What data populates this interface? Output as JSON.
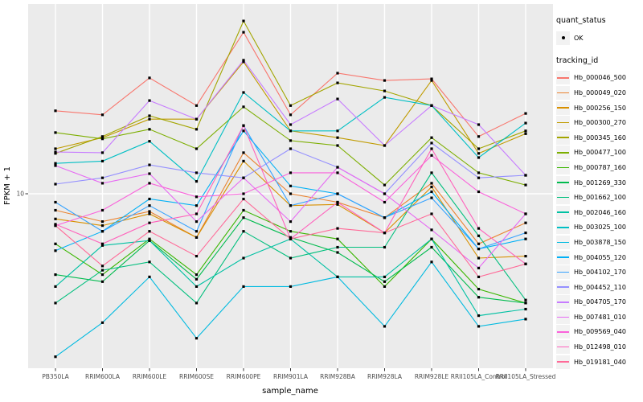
{
  "axes": {
    "x_title": "sample_name",
    "y_title": "FPKM + 1",
    "y_tick_label": "10"
  },
  "legend": {
    "quant_title": "quant_status",
    "quant_items": [
      {
        "label": "OK",
        "marker": "point"
      }
    ],
    "tracking_title": "tracking_id"
  },
  "chart_data": {
    "type": "line",
    "title": "",
    "xlabel": "sample_name",
    "ylabel": "FPKM + 1",
    "y_scale": "log10",
    "y_ticks": [
      10
    ],
    "ylim": [
      1.8,
      60
    ],
    "grid": "ggplot-gray-panel-white-gridlines",
    "legend_position": "right",
    "point_marker": {
      "shape": "square",
      "color": "#000000"
    },
    "x_categories": [
      "PB350LA",
      "RRIM600LA",
      "RRIM600LE",
      "RRIM600SE",
      "RRIM600PE",
      "RRIM901LA",
      "RRIM928BA",
      "RRIM928LA",
      "RRIM928LE",
      "RRII105LA_Control",
      "RRII105LA_Stressed"
    ],
    "series": [
      {
        "name": "Hb_000046_500",
        "color": "#F8766D",
        "values": [
          22.7,
          21.8,
          31.4,
          23.9,
          49.3,
          21.8,
          32.9,
          30.6,
          31.1,
          17.6,
          22.1
        ]
      },
      {
        "name": "Hb_000049_020",
        "color": "#EA8331",
        "values": [
          8.5,
          7.6,
          8.4,
          6.5,
          15.0,
          10.0,
          9.2,
          7.9,
          11.1,
          6.1,
          7.5
        ]
      },
      {
        "name": "Hb_000256_150",
        "color": "#D89000",
        "values": [
          7.8,
          7.3,
          8.2,
          6.5,
          13.8,
          8.9,
          9.0,
          6.8,
          10.7,
          5.3,
          5.4
        ]
      },
      {
        "name": "Hb_000300_270",
        "color": "#C09B00",
        "values": [
          15.6,
          17.4,
          20.9,
          20.9,
          36.8,
          18.6,
          17.4,
          16.1,
          30.6,
          14.9,
          18.1
        ]
      },
      {
        "name": "Hb_000345_160",
        "color": "#A3A500",
        "values": [
          14.9,
          17.6,
          21.6,
          18.9,
          55.1,
          23.9,
          29.9,
          27.6,
          23.9,
          15.6,
          18.6
        ]
      },
      {
        "name": "Hb_000477_100",
        "color": "#7CAE00",
        "values": [
          18.3,
          17.2,
          18.9,
          15.6,
          23.6,
          16.9,
          16.1,
          10.9,
          17.4,
          12.3,
          10.9
        ]
      },
      {
        "name": "Hb_000787_160",
        "color": "#39B600",
        "values": [
          6.1,
          4.5,
          6.4,
          4.5,
          8.5,
          6.9,
          6.4,
          4.0,
          6.4,
          3.9,
          3.4
        ]
      },
      {
        "name": "Hb_001269_330",
        "color": "#00BB4E",
        "values": [
          4.5,
          4.2,
          6.3,
          4.3,
          7.9,
          6.5,
          5.6,
          4.2,
          5.9,
          3.6,
          3.4
        ]
      },
      {
        "name": "Hb_001662_100",
        "color": "#00BF7D",
        "values": [
          3.4,
          4.7,
          5.1,
          3.4,
          6.9,
          5.3,
          5.9,
          5.9,
          12.3,
          6.6,
          3.5
        ]
      },
      {
        "name": "Hb_002046_160",
        "color": "#00C1A3",
        "values": [
          4.0,
          6.0,
          6.3,
          4.0,
          5.3,
          6.4,
          4.4,
          4.4,
          6.4,
          3.0,
          3.2
        ]
      },
      {
        "name": "Hb_003025_100",
        "color": "#00BFC4",
        "values": [
          13.5,
          13.8,
          16.8,
          11.3,
          27.2,
          18.6,
          18.6,
          25.9,
          23.9,
          14.3,
          20.1
        ]
      },
      {
        "name": "Hb_003878_150",
        "color": "#00BAE0",
        "values": [
          2.0,
          2.8,
          4.4,
          2.4,
          4.0,
          4.0,
          4.4,
          2.7,
          5.1,
          2.7,
          2.9
        ]
      },
      {
        "name": "Hb_004055_120",
        "color": "#00B0F6",
        "values": [
          5.7,
          6.9,
          9.5,
          8.9,
          18.6,
          10.8,
          10.0,
          7.9,
          10.2,
          5.8,
          6.4
        ]
      },
      {
        "name": "Hb_004102_170",
        "color": "#35A2FF",
        "values": [
          9.2,
          6.9,
          8.9,
          6.9,
          19.6,
          8.9,
          10.0,
          7.9,
          9.6,
          5.8,
          6.8
        ]
      },
      {
        "name": "Hb_004452_110",
        "color": "#9590FF",
        "values": [
          11.0,
          11.7,
          13.3,
          12.3,
          11.7,
          15.6,
          13.0,
          10.0,
          16.5,
          11.7,
          12.0
        ]
      },
      {
        "name": "Hb_004705_170",
        "color": "#C77CFF",
        "values": [
          15.1,
          15.0,
          25.1,
          20.9,
          37.4,
          19.8,
          25.5,
          16.1,
          23.9,
          19.8,
          12.0
        ]
      },
      {
        "name": "Hb_007481_010",
        "color": "#E76BF3",
        "values": [
          13.2,
          11.1,
          12.2,
          7.6,
          11.7,
          7.6,
          13.0,
          10.0,
          7.0,
          4.8,
          8.2
        ]
      },
      {
        "name": "Hb_009569_040",
        "color": "#FA62DB",
        "values": [
          7.3,
          8.5,
          11.1,
          9.7,
          10.0,
          12.3,
          12.3,
          9.2,
          14.6,
          10.2,
          8.2
        ]
      },
      {
        "name": "Hb_012498_010",
        "color": "#FF62BC",
        "values": [
          7.4,
          6.1,
          7.5,
          8.2,
          19.6,
          6.4,
          9.2,
          6.8,
          15.6,
          7.1,
          5.0
        ]
      },
      {
        "name": "Hb_019181_040",
        "color": "#FF6A98",
        "values": [
          7.3,
          4.9,
          6.9,
          5.4,
          9.5,
          6.4,
          7.1,
          6.8,
          8.2,
          4.4,
          5.0
        ]
      }
    ]
  }
}
